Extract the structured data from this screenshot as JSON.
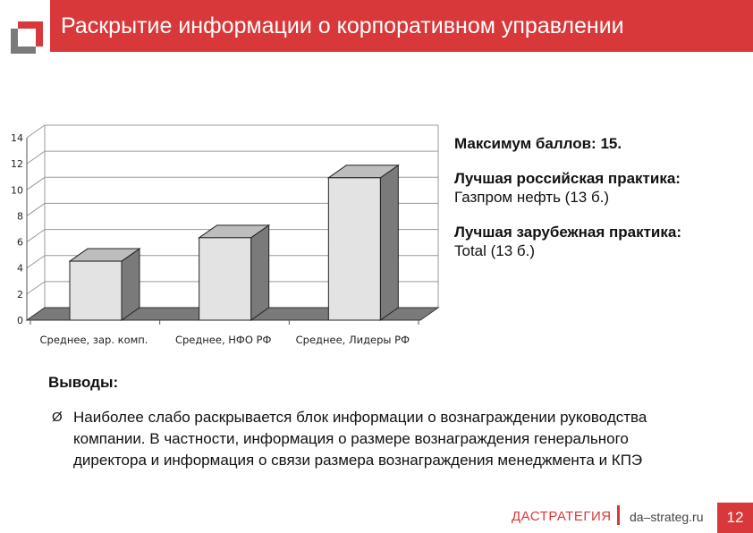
{
  "header": {
    "title": "Раскрытие информации о корпоративном управлении"
  },
  "chart_data": {
    "type": "bar",
    "categories": [
      "Среднее, зар. комп.",
      "Среднее, НФО РФ",
      "Среднее, Лидеры РФ"
    ],
    "values": [
      4.8,
      6.6,
      11.2
    ],
    "ylim": [
      0,
      14
    ],
    "yticks": [
      0,
      2,
      4,
      6,
      8,
      10,
      12,
      14
    ],
    "grid": true,
    "style": "3d",
    "bar_color": "#e3e3e3",
    "bar_side_color": "#7a7a7a"
  },
  "info": {
    "max_score": "Максимум баллов: 15.",
    "best_russian_label": "Лучшая российская практика:",
    "best_russian_value": "Газпром нефть (13 б.)",
    "best_foreign_label": "Лучшая зарубежная практика:",
    "best_foreign_value": "Total (13 б.)"
  },
  "conclusions": {
    "title": "Выводы:",
    "bullet_mark": "Ø",
    "bullet_text": "Наиболее слабо раскрывается блок информации о вознаграждении руководства компании. В частности, информация о размере вознаграждения генерального директора и информация о связи размера вознаграждения менеджмента и КПЭ"
  },
  "footer": {
    "brand": "ДАСТРАТЕГИЯ",
    "url": "da–strateg.ru",
    "page_number": "12"
  },
  "colors": {
    "accent": "#d9383a"
  }
}
